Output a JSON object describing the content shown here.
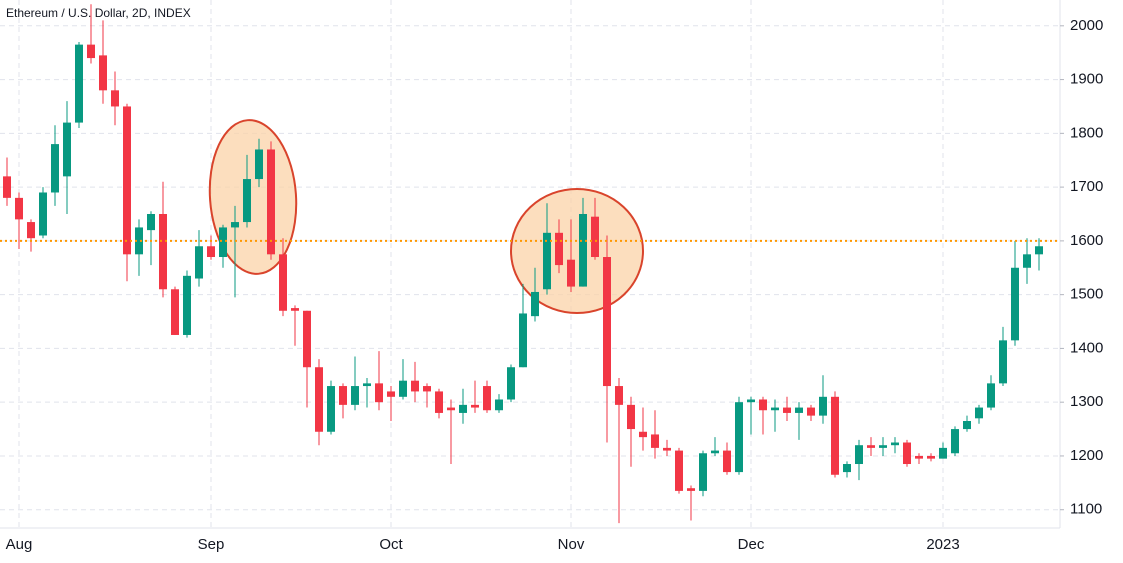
{
  "chart_data": {
    "type": "candlestick",
    "title": "Ethereum / U.S. Dollar, 2D, INDEX",
    "categories": [
      null,
      "Aug",
      null,
      null,
      null,
      null,
      null,
      null,
      null,
      null,
      null,
      null,
      null,
      null,
      null,
      null,
      null,
      "Sep",
      null,
      null,
      null,
      null,
      null,
      null,
      null,
      null,
      null,
      null,
      null,
      null,
      null,
      null,
      "Oct",
      null,
      null,
      null,
      null,
      null,
      null,
      null,
      null,
      null,
      null,
      null,
      null,
      null,
      null,
      "Nov",
      null,
      null,
      null,
      null,
      null,
      null,
      null,
      null,
      null,
      null,
      null,
      null,
      null,
      null,
      "Dec",
      null,
      null,
      null,
      null,
      null,
      null,
      null,
      null,
      null,
      null,
      null,
      null,
      null,
      null,
      null,
      "2023",
      null,
      null,
      null,
      null,
      null,
      null,
      null,
      null
    ],
    "series": [
      {
        "up_color": "#089981",
        "down_color": "#f23645",
        "open": [
          1720,
          1680,
          1635,
          1610,
          1690,
          1720,
          1820,
          1965,
          1945,
          1880,
          1850,
          1575,
          1620,
          1650,
          1510,
          1425,
          1530,
          1590,
          1570,
          1625,
          1635,
          1715,
          1770,
          1575,
          1475,
          1470,
          1365,
          1245,
          1330,
          1295,
          1330,
          1335,
          1320,
          1310,
          1340,
          1330,
          1320,
          1290,
          1280,
          1295,
          1330,
          1285,
          1305,
          1365,
          1460,
          1510,
          1615,
          1565,
          1515,
          1645,
          1570,
          1330,
          1295,
          1245,
          1240,
          1215,
          1210,
          1140,
          1135,
          1205,
          1210,
          1170,
          1300,
          1305,
          1285,
          1290,
          1280,
          1290,
          1275,
          1310,
          1170,
          1185,
          1220,
          1215,
          1220,
          1225,
          1200,
          1200,
          1195,
          1205,
          1250,
          1270,
          1290,
          1335,
          1415,
          1550,
          1575
        ],
        "high": [
          1755,
          1690,
          1640,
          1700,
          1815,
          1860,
          1970,
          2040,
          2010,
          1915,
          1855,
          1640,
          1655,
          1710,
          1515,
          1545,
          1620,
          1610,
          1630,
          1665,
          1760,
          1790,
          1785,
          1605,
          1480,
          1470,
          1380,
          1340,
          1335,
          1385,
          1345,
          1395,
          1330,
          1380,
          1375,
          1335,
          1325,
          1305,
          1325,
          1340,
          1340,
          1315,
          1370,
          1520,
          1550,
          1670,
          1640,
          1640,
          1680,
          1680,
          1610,
          1345,
          1310,
          1290,
          1285,
          1230,
          1215,
          1145,
          1210,
          1235,
          1225,
          1310,
          1310,
          1310,
          1305,
          1310,
          1300,
          1295,
          1350,
          1320,
          1190,
          1230,
          1235,
          1235,
          1235,
          1230,
          1205,
          1205,
          1225,
          1255,
          1275,
          1295,
          1350,
          1440,
          1600,
          1605,
          1605
        ],
        "low": [
          1665,
          1585,
          1580,
          1605,
          1665,
          1650,
          1810,
          1930,
          1855,
          1815,
          1525,
          1535,
          1555,
          1495,
          1425,
          1420,
          1515,
          1565,
          1550,
          1495,
          1625,
          1700,
          1565,
          1460,
          1405,
          1290,
          1220,
          1240,
          1270,
          1285,
          1290,
          1285,
          1265,
          1305,
          1300,
          1290,
          1270,
          1185,
          1260,
          1280,
          1280,
          1280,
          1300,
          1365,
          1450,
          1500,
          1540,
          1505,
          1515,
          1565,
          1225,
          1075,
          1180,
          1210,
          1195,
          1200,
          1130,
          1080,
          1125,
          1200,
          1165,
          1165,
          1240,
          1240,
          1245,
          1265,
          1230,
          1265,
          1260,
          1160,
          1160,
          1155,
          1200,
          1200,
          1205,
          1180,
          1185,
          1190,
          1195,
          1200,
          1245,
          1260,
          1285,
          1330,
          1405,
          1520,
          1545
        ],
        "close": [
          1680,
          1640,
          1605,
          1690,
          1780,
          1820,
          1965,
          1940,
          1880,
          1850,
          1575,
          1625,
          1650,
          1510,
          1425,
          1535,
          1590,
          1570,
          1625,
          1635,
          1715,
          1770,
          1575,
          1470,
          1470,
          1365,
          1245,
          1330,
          1295,
          1330,
          1335,
          1300,
          1310,
          1340,
          1320,
          1320,
          1280,
          1285,
          1295,
          1290,
          1285,
          1305,
          1365,
          1465,
          1505,
          1615,
          1555,
          1515,
          1650,
          1570,
          1330,
          1295,
          1250,
          1235,
          1215,
          1210,
          1135,
          1135,
          1205,
          1210,
          1170,
          1300,
          1305,
          1285,
          1290,
          1280,
          1290,
          1275,
          1310,
          1165,
          1185,
          1220,
          1215,
          1220,
          1225,
          1185,
          1195,
          1195,
          1215,
          1250,
          1265,
          1290,
          1335,
          1415,
          1550,
          1575,
          1590
        ]
      }
    ],
    "reference_line": {
      "value": 1600,
      "color": "#ff9800"
    },
    "ylim": [
      1066,
      2048
    ],
    "yticks": [
      1100,
      1200,
      1300,
      1400,
      1500,
      1600,
      1700,
      1800,
      1900,
      2000
    ],
    "grid": true
  }
}
